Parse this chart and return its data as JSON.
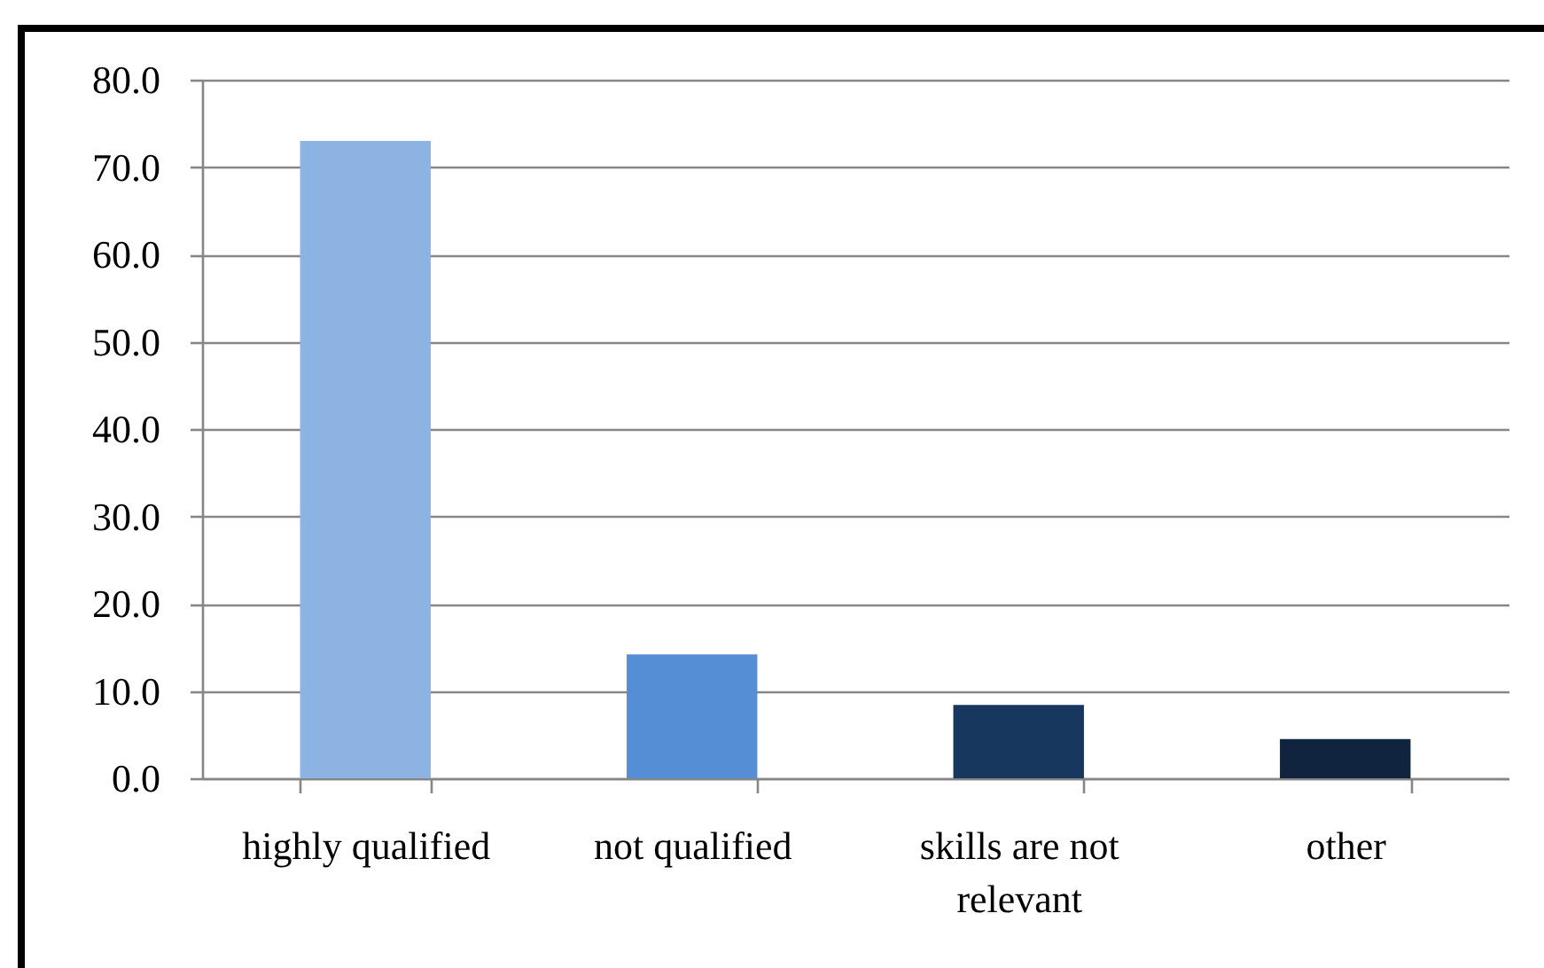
{
  "chart_data": {
    "type": "bar",
    "categories": [
      "highly qualified",
      "not qualified",
      "skills are not relevant",
      "other"
    ],
    "values": [
      73.0,
      14.2,
      8.4,
      4.5
    ],
    "colors": [
      "#8db3e2",
      "#558ed5",
      "#17375e",
      "#10243f"
    ],
    "ylim": [
      0,
      80
    ],
    "yticks": [
      {
        "value": 0,
        "label": "0.0"
      },
      {
        "value": 10,
        "label": "10.0"
      },
      {
        "value": 20,
        "label": "20.0"
      },
      {
        "value": 30,
        "label": "30.0"
      },
      {
        "value": 40,
        "label": "40.0"
      },
      {
        "value": 50,
        "label": "50.0"
      },
      {
        "value": 60,
        "label": "60.0"
      },
      {
        "value": 70,
        "label": "70.0"
      },
      {
        "value": 80,
        "label": "80.0"
      }
    ],
    "grid": "y"
  }
}
